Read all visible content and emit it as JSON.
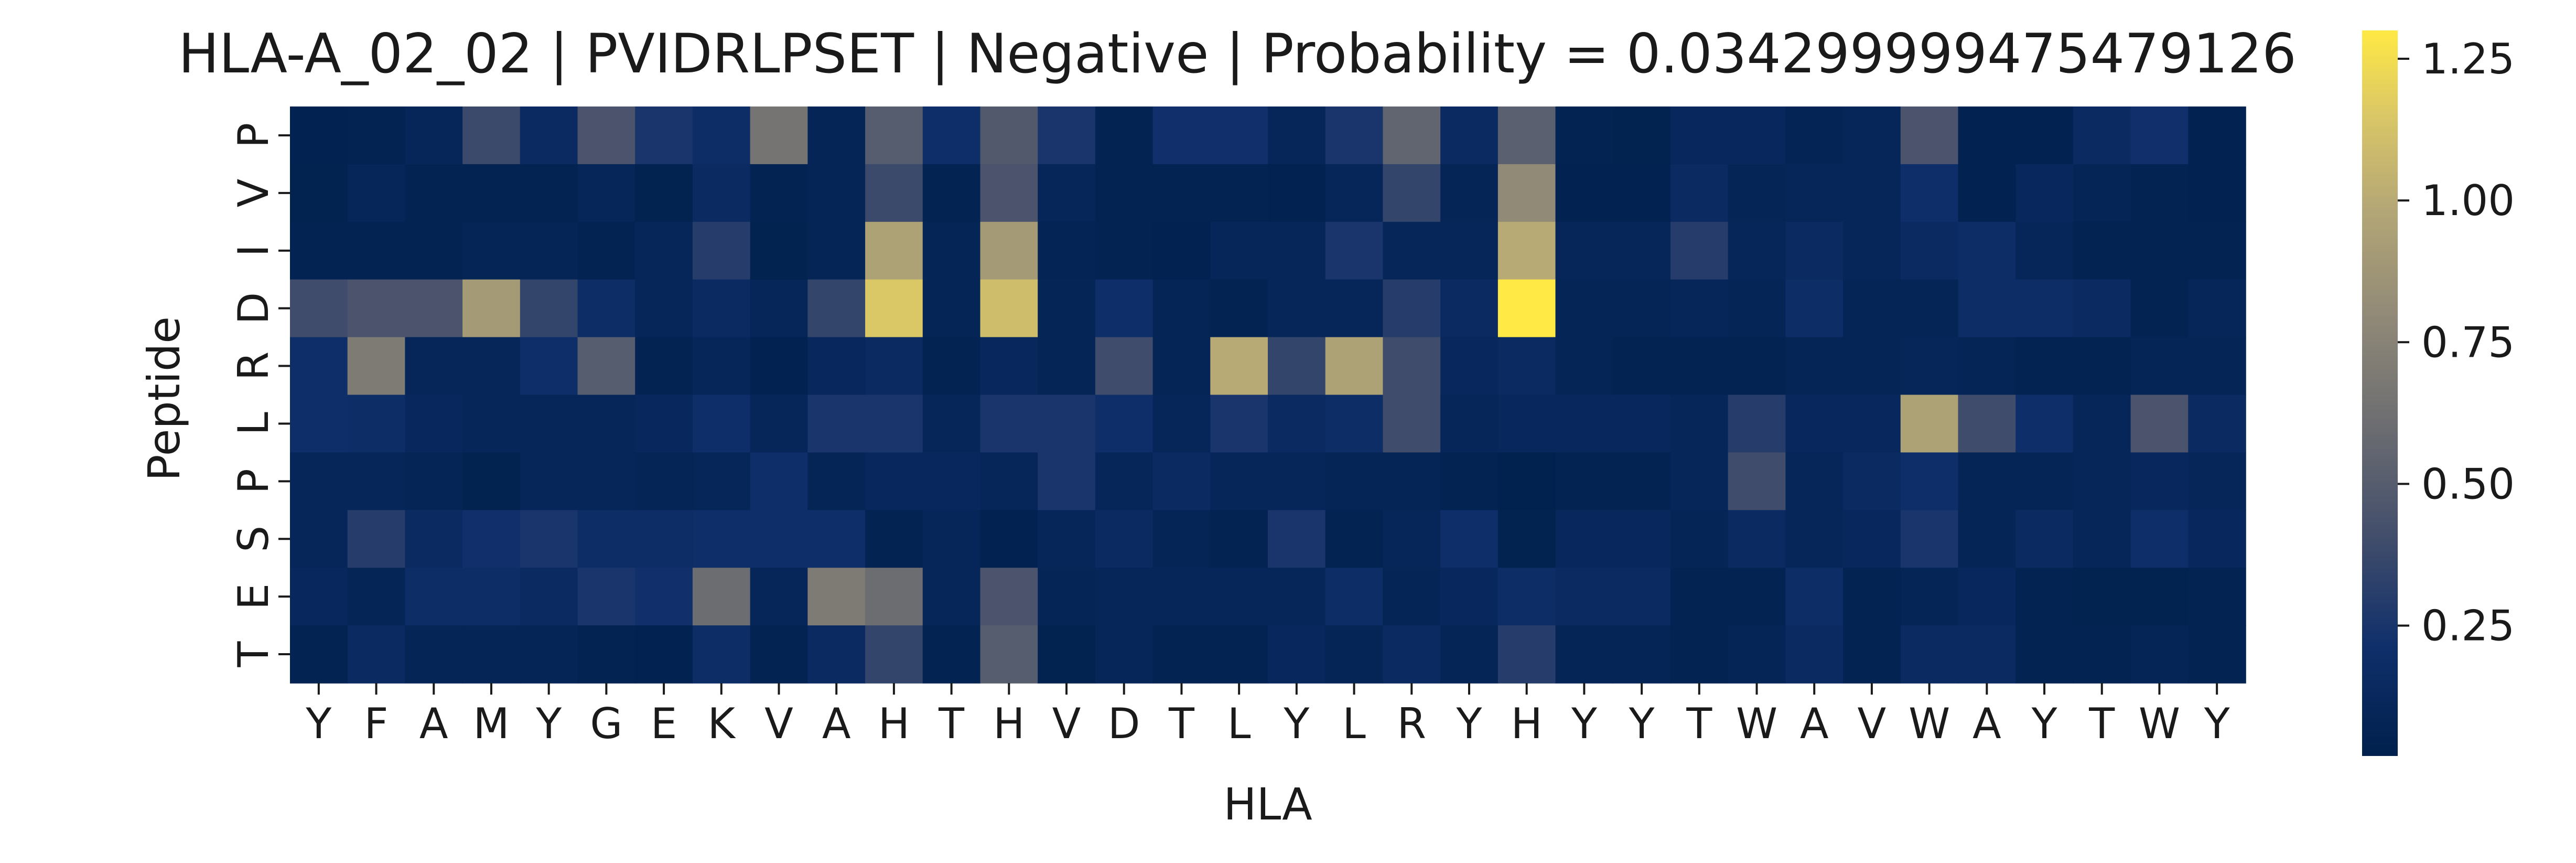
{
  "chart_data": {
    "type": "heatmap",
    "title": "HLA-A_02_02 | PVIDRLPSET | Negative | Probability = 0.034299999475479126",
    "xlabel": "HLA",
    "ylabel": "Peptide",
    "x_labels": [
      "Y",
      "F",
      "A",
      "M",
      "Y",
      "G",
      "E",
      "K",
      "V",
      "A",
      "H",
      "T",
      "H",
      "V",
      "D",
      "T",
      "L",
      "Y",
      "L",
      "R",
      "Y",
      "H",
      "Y",
      "Y",
      "T",
      "W",
      "A",
      "V",
      "W",
      "A",
      "Y",
      "T",
      "W",
      "Y"
    ],
    "y_labels": [
      "P",
      "V",
      "I",
      "D",
      "R",
      "L",
      "P",
      "S",
      "E",
      "T"
    ],
    "colorbar": {
      "min": 0.02,
      "max": 1.3,
      "ticks": [
        0.25,
        0.5,
        0.75,
        1.0,
        1.25
      ],
      "tick_labels": [
        "0.25",
        "0.50",
        "0.75",
        "1.00",
        "1.25"
      ],
      "colormap": "cividis"
    },
    "values": [
      [
        0.05,
        0.06,
        0.1,
        0.38,
        0.15,
        0.45,
        0.25,
        0.18,
        0.65,
        0.08,
        0.5,
        0.2,
        0.48,
        0.25,
        0.06,
        0.22,
        0.22,
        0.1,
        0.25,
        0.55,
        0.15,
        0.52,
        0.06,
        0.04,
        0.12,
        0.12,
        0.07,
        0.1,
        0.45,
        0.05,
        0.05,
        0.15,
        0.22,
        0.05
      ],
      [
        0.04,
        0.1,
        0.06,
        0.06,
        0.06,
        0.1,
        0.04,
        0.15,
        0.06,
        0.08,
        0.38,
        0.06,
        0.45,
        0.1,
        0.06,
        0.06,
        0.06,
        0.05,
        0.1,
        0.35,
        0.08,
        0.8,
        0.05,
        0.05,
        0.15,
        0.08,
        0.1,
        0.1,
        0.2,
        0.05,
        0.12,
        0.08,
        0.06,
        0.05
      ],
      [
        0.06,
        0.06,
        0.06,
        0.08,
        0.08,
        0.06,
        0.1,
        0.3,
        0.04,
        0.08,
        0.95,
        0.08,
        0.9,
        0.07,
        0.06,
        0.05,
        0.1,
        0.1,
        0.25,
        0.1,
        0.1,
        1.0,
        0.1,
        0.1,
        0.3,
        0.1,
        0.15,
        0.1,
        0.15,
        0.18,
        0.1,
        0.06,
        0.06,
        0.06
      ],
      [
        0.4,
        0.45,
        0.45,
        0.9,
        0.35,
        0.18,
        0.1,
        0.15,
        0.1,
        0.35,
        1.15,
        0.08,
        1.1,
        0.08,
        0.2,
        0.08,
        0.06,
        0.1,
        0.1,
        0.3,
        0.15,
        1.3,
        0.08,
        0.08,
        0.1,
        0.08,
        0.18,
        0.08,
        0.08,
        0.18,
        0.18,
        0.15,
        0.06,
        0.1
      ],
      [
        0.2,
        0.7,
        0.1,
        0.1,
        0.2,
        0.5,
        0.06,
        0.1,
        0.05,
        0.12,
        0.15,
        0.06,
        0.12,
        0.08,
        0.4,
        0.08,
        1.0,
        0.35,
        0.95,
        0.4,
        0.12,
        0.15,
        0.08,
        0.06,
        0.06,
        0.06,
        0.08,
        0.08,
        0.1,
        0.08,
        0.06,
        0.06,
        0.08,
        0.08
      ],
      [
        0.2,
        0.18,
        0.12,
        0.1,
        0.1,
        0.1,
        0.12,
        0.2,
        0.1,
        0.25,
        0.25,
        0.1,
        0.25,
        0.25,
        0.2,
        0.1,
        0.25,
        0.15,
        0.18,
        0.4,
        0.1,
        0.12,
        0.12,
        0.12,
        0.1,
        0.3,
        0.12,
        0.12,
        0.95,
        0.4,
        0.2,
        0.1,
        0.45,
        0.15
      ],
      [
        0.1,
        0.1,
        0.08,
        0.04,
        0.1,
        0.1,
        0.08,
        0.1,
        0.2,
        0.08,
        0.12,
        0.12,
        0.1,
        0.25,
        0.1,
        0.15,
        0.1,
        0.1,
        0.08,
        0.08,
        0.06,
        0.03,
        0.06,
        0.06,
        0.1,
        0.4,
        0.1,
        0.15,
        0.2,
        0.08,
        0.08,
        0.1,
        0.12,
        0.1
      ],
      [
        0.1,
        0.3,
        0.15,
        0.22,
        0.25,
        0.18,
        0.18,
        0.2,
        0.2,
        0.2,
        0.06,
        0.1,
        0.05,
        0.1,
        0.15,
        0.08,
        0.06,
        0.25,
        0.06,
        0.1,
        0.2,
        0.04,
        0.12,
        0.12,
        0.08,
        0.15,
        0.1,
        0.12,
        0.25,
        0.08,
        0.15,
        0.1,
        0.2,
        0.12
      ],
      [
        0.12,
        0.08,
        0.18,
        0.18,
        0.15,
        0.25,
        0.22,
        0.6,
        0.1,
        0.7,
        0.6,
        0.1,
        0.45,
        0.08,
        0.1,
        0.1,
        0.1,
        0.1,
        0.18,
        0.08,
        0.12,
        0.18,
        0.15,
        0.15,
        0.06,
        0.06,
        0.18,
        0.06,
        0.08,
        0.12,
        0.06,
        0.04,
        0.04,
        0.06
      ],
      [
        0.06,
        0.15,
        0.08,
        0.08,
        0.08,
        0.06,
        0.05,
        0.18,
        0.06,
        0.15,
        0.35,
        0.06,
        0.5,
        0.04,
        0.1,
        0.06,
        0.06,
        0.12,
        0.08,
        0.15,
        0.08,
        0.3,
        0.08,
        0.08,
        0.06,
        0.08,
        0.15,
        0.06,
        0.15,
        0.15,
        0.06,
        0.06,
        0.08,
        0.06
      ]
    ]
  }
}
